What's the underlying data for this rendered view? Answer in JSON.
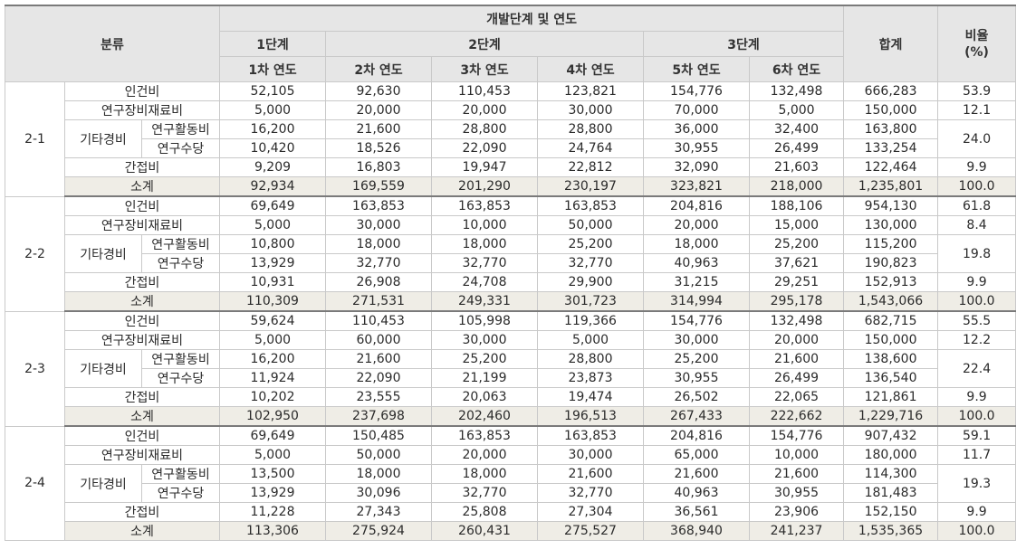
{
  "header": {
    "category": "분류",
    "dev_stage": "개발단계 및 연도",
    "stages": [
      "1단계",
      "2단계",
      "3단계"
    ],
    "years": [
      "1차 연도",
      "2차 연도",
      "3차 연도",
      "4차 연도",
      "5차 연도",
      "6차 연도"
    ],
    "total": "합계",
    "ratio": "비율\n(%)"
  },
  "groups": [
    {
      "id": "2-1",
      "personnel": {
        "label": "인건비",
        "values": [
          "52,105",
          "92,630",
          "110,453",
          "123,821",
          "154,776",
          "132,498"
        ],
        "total": "666,283",
        "ratio": "53.9"
      },
      "equipment": {
        "label": "연구장비재료비",
        "values": [
          "5,000",
          "20,000",
          "20,000",
          "30,000",
          "70,000",
          "5,000"
        ],
        "total": "150,000",
        "ratio": "12.1"
      },
      "other_label": "기타경비",
      "activity": {
        "label": "연구활동비",
        "values": [
          "16,200",
          "21,600",
          "28,800",
          "28,800",
          "36,000",
          "32,400"
        ],
        "total": "163,800"
      },
      "allowance": {
        "label": "연구수당",
        "values": [
          "10,420",
          "18,526",
          "22,090",
          "24,764",
          "30,955",
          "26,499"
        ],
        "total": "133,254"
      },
      "other_ratio": "24.0",
      "indirect": {
        "label": "간접비",
        "values": [
          "9,209",
          "16,803",
          "19,947",
          "22,812",
          "32,090",
          "21,603"
        ],
        "total": "122,464",
        "ratio": "9.9"
      },
      "subtotal": {
        "label": "소계",
        "values": [
          "92,934",
          "169,559",
          "201,290",
          "230,197",
          "323,821",
          "218,000"
        ],
        "total": "1,235,801",
        "ratio": "100.0"
      }
    },
    {
      "id": "2-2",
      "personnel": {
        "label": "인건비",
        "values": [
          "69,649",
          "163,853",
          "163,853",
          "163,853",
          "204,816",
          "188,106"
        ],
        "total": "954,130",
        "ratio": "61.8"
      },
      "equipment": {
        "label": "연구장비재료비",
        "values": [
          "5,000",
          "30,000",
          "10,000",
          "50,000",
          "20,000",
          "15,000"
        ],
        "total": "130,000",
        "ratio": "8.4"
      },
      "other_label": "기타경비",
      "activity": {
        "label": "연구활동비",
        "values": [
          "10,800",
          "18,000",
          "18,000",
          "25,200",
          "18,000",
          "25,200"
        ],
        "total": "115,200"
      },
      "allowance": {
        "label": "연구수당",
        "values": [
          "13,929",
          "32,770",
          "32,770",
          "32,770",
          "40,963",
          "37,621"
        ],
        "total": "190,823"
      },
      "other_ratio": "19.8",
      "indirect": {
        "label": "간접비",
        "values": [
          "10,931",
          "26,908",
          "24,708",
          "29,900",
          "31,215",
          "29,251"
        ],
        "total": "152,913",
        "ratio": "9.9"
      },
      "subtotal": {
        "label": "소계",
        "values": [
          "110,309",
          "271,531",
          "249,331",
          "301,723",
          "314,994",
          "295,178"
        ],
        "total": "1,543,066",
        "ratio": "100.0"
      }
    },
    {
      "id": "2-3",
      "personnel": {
        "label": "인건비",
        "values": [
          "59,624",
          "110,453",
          "105,998",
          "119,366",
          "154,776",
          "132,498"
        ],
        "total": "682,715",
        "ratio": "55.5"
      },
      "equipment": {
        "label": "연구장비재료비",
        "values": [
          "5,000",
          "60,000",
          "30,000",
          "5,000",
          "30,000",
          "20,000"
        ],
        "total": "150,000",
        "ratio": "12.2"
      },
      "other_label": "기타경비",
      "activity": {
        "label": "연구활동비",
        "values": [
          "16,200",
          "21,600",
          "25,200",
          "28,800",
          "25,200",
          "21,600"
        ],
        "total": "138,600"
      },
      "allowance": {
        "label": "연구수당",
        "values": [
          "11,924",
          "22,090",
          "21,199",
          "23,873",
          "30,955",
          "26,499"
        ],
        "total": "136,540"
      },
      "other_ratio": "22.4",
      "indirect": {
        "label": "간접비",
        "values": [
          "10,202",
          "23,555",
          "20,063",
          "19,474",
          "26,502",
          "22,065"
        ],
        "total": "121,861",
        "ratio": "9.9"
      },
      "subtotal": {
        "label": "소계",
        "values": [
          "102,950",
          "237,698",
          "202,460",
          "196,513",
          "267,433",
          "222,662"
        ],
        "total": "1,229,716",
        "ratio": "100.0"
      }
    },
    {
      "id": "2-4",
      "personnel": {
        "label": "인건비",
        "values": [
          "69,649",
          "150,485",
          "163,853",
          "163,853",
          "204,816",
          "154,776"
        ],
        "total": "907,432",
        "ratio": "59.1"
      },
      "equipment": {
        "label": "연구장비재료비",
        "values": [
          "5,000",
          "50,000",
          "20,000",
          "30,000",
          "65,000",
          "10,000"
        ],
        "total": "180,000",
        "ratio": "11.7"
      },
      "other_label": "기타경비",
      "activity": {
        "label": "연구활동비",
        "values": [
          "13,500",
          "18,000",
          "18,000",
          "21,600",
          "21,600",
          "21,600"
        ],
        "total": "114,300"
      },
      "allowance": {
        "label": "연구수당",
        "values": [
          "13,929",
          "30,096",
          "32,770",
          "32,770",
          "40,963",
          "30,955"
        ],
        "total": "181,483"
      },
      "other_ratio": "19.3",
      "indirect": {
        "label": "간접비",
        "values": [
          "11,228",
          "27,343",
          "25,808",
          "27,304",
          "36,561",
          "23,906"
        ],
        "total": "152,150",
        "ratio": "9.9"
      },
      "subtotal": {
        "label": "소계",
        "values": [
          "113,306",
          "275,924",
          "260,431",
          "275,527",
          "368,940",
          "241,237"
        ],
        "total": "1,535,365",
        "ratio": "100.0"
      }
    }
  ]
}
